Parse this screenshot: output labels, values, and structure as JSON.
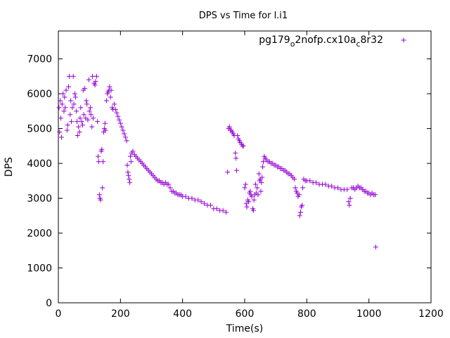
{
  "chart_data": {
    "type": "scatter",
    "title": "DPS vs Time for l.i1",
    "xlabel": "Time(s)",
    "ylabel": "DPS",
    "xlim": [
      0,
      1200
    ],
    "ylim": [
      0,
      7800
    ],
    "xticks": [
      0,
      200,
      400,
      600,
      800,
      1000,
      1200
    ],
    "yticks": [
      0,
      1000,
      2000,
      3000,
      4000,
      5000,
      6000,
      7000
    ],
    "grid": false,
    "legend_position": "top-right",
    "series": [
      {
        "name_parts": [
          "pg179",
          "o",
          "2nofp.cx10a",
          "c",
          "8r32"
        ],
        "color": "#9400d3",
        "marker": "+",
        "points": [
          [
            2,
            5600
          ],
          [
            4,
            4900
          ],
          [
            6,
            5800
          ],
          [
            8,
            5300
          ],
          [
            10,
            4750
          ],
          [
            12,
            5700
          ],
          [
            15,
            6000
          ],
          [
            18,
            5500
          ],
          [
            20,
            5900
          ],
          [
            22,
            5600
          ],
          [
            25,
            6100
          ],
          [
            28,
            4950
          ],
          [
            30,
            5100
          ],
          [
            33,
            6200
          ],
          [
            35,
            6500
          ],
          [
            38,
            5400
          ],
          [
            40,
            5800
          ],
          [
            42,
            5200
          ],
          [
            45,
            5600
          ],
          [
            48,
            6500
          ],
          [
            50,
            5700
          ],
          [
            53,
            6000
          ],
          [
            55,
            5900
          ],
          [
            58,
            5500
          ],
          [
            60,
            5200
          ],
          [
            62,
            4800
          ],
          [
            65,
            5050
          ],
          [
            68,
            4900
          ],
          [
            70,
            5300
          ],
          [
            72,
            5600
          ],
          [
            75,
            5200
          ],
          [
            78,
            5100
          ],
          [
            80,
            6100
          ],
          [
            82,
            5400
          ],
          [
            85,
            6150
          ],
          [
            88,
            5300
          ],
          [
            90,
            5800
          ],
          [
            92,
            5700
          ],
          [
            95,
            5250
          ],
          [
            98,
            6400
          ],
          [
            100,
            5500
          ],
          [
            103,
            5600
          ],
          [
            105,
            5400
          ],
          [
            108,
            5050
          ],
          [
            110,
            6500
          ],
          [
            112,
            5300
          ],
          [
            115,
            6300
          ],
          [
            118,
            6250
          ],
          [
            120,
            6350
          ],
          [
            123,
            6500
          ],
          [
            126,
            5200
          ],
          [
            128,
            4200
          ],
          [
            130,
            4050
          ],
          [
            132,
            3100
          ],
          [
            134,
            3000
          ],
          [
            136,
            2950
          ],
          [
            138,
            4350
          ],
          [
            140,
            4400
          ],
          [
            142,
            3300
          ],
          [
            144,
            4050
          ],
          [
            146,
            4900
          ],
          [
            148,
            5000
          ],
          [
            150,
            5150
          ],
          [
            152,
            4950
          ],
          [
            155,
            5800
          ],
          [
            158,
            6000
          ],
          [
            160,
            6050
          ],
          [
            163,
            6100
          ],
          [
            165,
            6200
          ],
          [
            168,
            5900
          ],
          [
            170,
            6100
          ],
          [
            173,
            5600
          ],
          [
            176,
            5550
          ],
          [
            180,
            5700
          ],
          [
            184,
            5550
          ],
          [
            188,
            5450
          ],
          [
            192,
            5350
          ],
          [
            196,
            5250
          ],
          [
            200,
            5150
          ],
          [
            204,
            5050
          ],
          [
            208,
            4950
          ],
          [
            212,
            4850
          ],
          [
            216,
            4750
          ],
          [
            220,
            4650
          ],
          [
            222,
            3950
          ],
          [
            224,
            3750
          ],
          [
            226,
            3650
          ],
          [
            228,
            3550
          ],
          [
            230,
            3450
          ],
          [
            232,
            4200
          ],
          [
            234,
            4050
          ],
          [
            236,
            4300
          ],
          [
            240,
            4350
          ],
          [
            245,
            4250
          ],
          [
            250,
            4200
          ],
          [
            255,
            4150
          ],
          [
            260,
            4100
          ],
          [
            265,
            4050
          ],
          [
            270,
            4000
          ],
          [
            275,
            3950
          ],
          [
            280,
            3900
          ],
          [
            285,
            3850
          ],
          [
            290,
            3800
          ],
          [
            295,
            3750
          ],
          [
            300,
            3700
          ],
          [
            305,
            3650
          ],
          [
            310,
            3600
          ],
          [
            315,
            3550
          ],
          [
            320,
            3500
          ],
          [
            325,
            3500
          ],
          [
            330,
            3450
          ],
          [
            335,
            3450
          ],
          [
            340,
            3400
          ],
          [
            345,
            3450
          ],
          [
            350,
            3400
          ],
          [
            355,
            3400
          ],
          [
            360,
            3300
          ],
          [
            365,
            3200
          ],
          [
            370,
            3200
          ],
          [
            375,
            3150
          ],
          [
            380,
            3150
          ],
          [
            385,
            3100
          ],
          [
            390,
            3100
          ],
          [
            395,
            3100
          ],
          [
            400,
            3050
          ],
          [
            410,
            3050
          ],
          [
            420,
            3000
          ],
          [
            430,
            3000
          ],
          [
            440,
            2950
          ],
          [
            450,
            2950
          ],
          [
            460,
            2900
          ],
          [
            470,
            2850
          ],
          [
            480,
            2800
          ],
          [
            490,
            2800
          ],
          [
            500,
            2700
          ],
          [
            510,
            2700
          ],
          [
            520,
            2650
          ],
          [
            530,
            2650
          ],
          [
            540,
            2600
          ],
          [
            545,
            3750
          ],
          [
            548,
            5000
          ],
          [
            551,
            5050
          ],
          [
            554,
            4950
          ],
          [
            557,
            4950
          ],
          [
            560,
            4900
          ],
          [
            563,
            4850
          ],
          [
            566,
            4800
          ],
          [
            570,
            4300
          ],
          [
            572,
            4150
          ],
          [
            574,
            3800
          ],
          [
            577,
            4800
          ],
          [
            580,
            4700
          ],
          [
            583,
            4650
          ],
          [
            586,
            4600
          ],
          [
            590,
            4550
          ],
          [
            593,
            4500
          ],
          [
            596,
            4500
          ],
          [
            600,
            3300
          ],
          [
            603,
            3400
          ],
          [
            605,
            2850
          ],
          [
            607,
            2750
          ],
          [
            610,
            2950
          ],
          [
            613,
            2900
          ],
          [
            615,
            3150
          ],
          [
            618,
            3200
          ],
          [
            620,
            3100
          ],
          [
            623,
            3050
          ],
          [
            626,
            2700
          ],
          [
            628,
            2650
          ],
          [
            630,
            2950
          ],
          [
            632,
            3100
          ],
          [
            635,
            3400
          ],
          [
            637,
            3150
          ],
          [
            640,
            3300
          ],
          [
            643,
            3100
          ],
          [
            646,
            3700
          ],
          [
            648,
            3500
          ],
          [
            650,
            3550
          ],
          [
            652,
            3200
          ],
          [
            654,
            3450
          ],
          [
            656,
            3600
          ],
          [
            658,
            3900
          ],
          [
            660,
            4050
          ],
          [
            663,
            4200
          ],
          [
            666,
            4150
          ],
          [
            670,
            4100
          ],
          [
            675,
            4050
          ],
          [
            680,
            4050
          ],
          [
            685,
            4000
          ],
          [
            690,
            4000
          ],
          [
            695,
            3950
          ],
          [
            700,
            3950
          ],
          [
            705,
            3900
          ],
          [
            710,
            3900
          ],
          [
            715,
            3850
          ],
          [
            720,
            3850
          ],
          [
            725,
            3800
          ],
          [
            730,
            3800
          ],
          [
            735,
            3750
          ],
          [
            740,
            3700
          ],
          [
            745,
            3700
          ],
          [
            750,
            3650
          ],
          [
            755,
            3600
          ],
          [
            760,
            3550
          ],
          [
            763,
            3300
          ],
          [
            766,
            3200
          ],
          [
            769,
            3150
          ],
          [
            772,
            3050
          ],
          [
            775,
            3100
          ],
          [
            777,
            2500
          ],
          [
            780,
            2600
          ],
          [
            782,
            2750
          ],
          [
            785,
            2800
          ],
          [
            787,
            3300
          ],
          [
            790,
            3550
          ],
          [
            795,
            3500
          ],
          [
            800,
            3500
          ],
          [
            810,
            3500
          ],
          [
            820,
            3450
          ],
          [
            830,
            3450
          ],
          [
            840,
            3400
          ],
          [
            850,
            3400
          ],
          [
            860,
            3400
          ],
          [
            870,
            3350
          ],
          [
            880,
            3350
          ],
          [
            890,
            3300
          ],
          [
            900,
            3300
          ],
          [
            910,
            3250
          ],
          [
            920,
            3250
          ],
          [
            930,
            3250
          ],
          [
            935,
            2900
          ],
          [
            937,
            2800
          ],
          [
            940,
            3000
          ],
          [
            945,
            3300
          ],
          [
            950,
            3300
          ],
          [
            955,
            3250
          ],
          [
            960,
            3300
          ],
          [
            965,
            3350
          ],
          [
            970,
            3300
          ],
          [
            975,
            3300
          ],
          [
            980,
            3250
          ],
          [
            985,
            3200
          ],
          [
            990,
            3200
          ],
          [
            995,
            3150
          ],
          [
            1000,
            3150
          ],
          [
            1005,
            3100
          ],
          [
            1010,
            3150
          ],
          [
            1015,
            3100
          ],
          [
            1020,
            3100
          ],
          [
            1022,
            1600
          ]
        ]
      }
    ]
  }
}
